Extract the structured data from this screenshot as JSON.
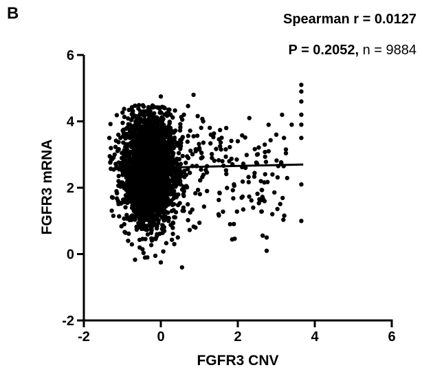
{
  "panel_label": "B",
  "stats": {
    "line1": "Spearman  r = 0.0127",
    "p_text": "P = 0.2052,",
    "n_text": "  n = 9884"
  },
  "chart_data": {
    "type": "scatter",
    "xlabel": "FGFR3 CNV",
    "ylabel": "FGFR3 mRNA",
    "xlim": [
      -2,
      6
    ],
    "ylim": [
      -2,
      6
    ],
    "xticks": [
      -2,
      0,
      2,
      4,
      6
    ],
    "yticks": [
      -2,
      0,
      2,
      4,
      6
    ],
    "grid": false,
    "n": 9884,
    "spearman_r": 0.0127,
    "p_value": 0.2052,
    "trend_line": {
      "x": [
        -1.3,
        3.7
      ],
      "y": [
        2.57,
        2.7
      ]
    },
    "points_sample": [
      [
        -1.3,
        2.57
      ],
      [
        -1.25,
        1.7
      ],
      [
        -1.2,
        3.0
      ],
      [
        -1.1,
        2.2
      ],
      [
        -1.05,
        3.5
      ],
      [
        -0.95,
        0.9
      ],
      [
        -0.9,
        2.8
      ],
      [
        -0.85,
        0.4
      ],
      [
        -0.8,
        3.9
      ],
      [
        -0.7,
        1.3
      ],
      [
        -0.6,
        4.1
      ],
      [
        -0.55,
        0.2
      ],
      [
        -0.5,
        2.4
      ],
      [
        -0.4,
        4.3
      ],
      [
        -0.35,
        -0.1
      ],
      [
        -0.3,
        1.8
      ],
      [
        -0.2,
        3.3
      ],
      [
        -0.1,
        0.6
      ],
      [
        0.0,
        4.75
      ],
      [
        0.0,
        -0.25
      ],
      [
        0.05,
        2.9
      ],
      [
        0.1,
        4.4
      ],
      [
        0.2,
        1.0
      ],
      [
        0.3,
        3.7
      ],
      [
        0.35,
        0.3
      ],
      [
        0.5,
        2.5
      ],
      [
        0.55,
        -0.4
      ],
      [
        0.6,
        4.2
      ],
      [
        0.7,
        1.5
      ],
      [
        0.85,
        4.8
      ],
      [
        0.9,
        0.8
      ],
      [
        1.0,
        3.2
      ],
      [
        1.1,
        4.0
      ],
      [
        1.2,
        1.9
      ],
      [
        1.3,
        3.6
      ],
      [
        1.5,
        1.2
      ],
      [
        1.6,
        2.8
      ],
      [
        1.7,
        3.8
      ],
      [
        1.8,
        0.9
      ],
      [
        1.9,
        2.1
      ],
      [
        2.0,
        3.4
      ],
      [
        2.1,
        1.7
      ],
      [
        2.2,
        2.6
      ],
      [
        2.3,
        4.1
      ],
      [
        2.4,
        1.4
      ],
      [
        2.5,
        3.0
      ],
      [
        2.6,
        2.2
      ],
      [
        2.7,
        3.3
      ],
      [
        2.75,
        0.1
      ],
      [
        2.75,
        0.5
      ],
      [
        2.8,
        3.1
      ],
      [
        2.9,
        2.4
      ],
      [
        3.0,
        3.6
      ],
      [
        3.2,
        3.5
      ],
      [
        3.4,
        3.9
      ],
      [
        3.65,
        5.1
      ],
      [
        3.65,
        4.9
      ],
      [
        3.65,
        4.6
      ],
      [
        3.65,
        4.2
      ],
      [
        3.65,
        3.9
      ],
      [
        3.65,
        3.5
      ],
      [
        3.65,
        2.1
      ],
      [
        3.65,
        1.0
      ]
    ]
  }
}
